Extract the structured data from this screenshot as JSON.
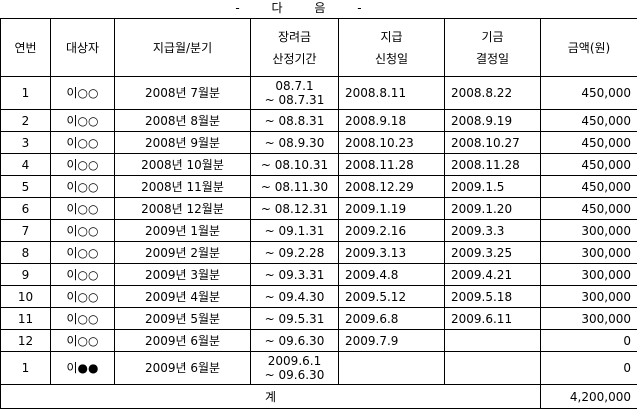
{
  "caption": "- 다 음 -",
  "table": {
    "header": [
      "연번",
      "대상자",
      "지급월/분기",
      "장려금\n산정기간",
      "지급\n신청일",
      "기금\n결정일",
      "금액(원)"
    ],
    "rows": [
      [
        "1",
        "이○○",
        "2008년 7월분",
        "08.7.1\n~ 08.7.31",
        "2008.8.11",
        "2008.8.22",
        "450,000"
      ],
      [
        "2",
        "이○○",
        "2008년 8월분",
        "~ 08.8.31",
        "2008.9.18",
        "2008.9.19",
        "450,000"
      ],
      [
        "3",
        "이○○",
        "2008년 9월분",
        "~ 08.9.30",
        "2008.10.23",
        "2008.10.27",
        "450,000"
      ],
      [
        "4",
        "이○○",
        "2008년 10월분",
        "~ 08.10.31",
        "2008.11.28",
        "2008.11.28",
        "450,000"
      ],
      [
        "5",
        "이○○",
        "2008년 11월분",
        "~ 08.11.30",
        "2008.12.29",
        "2009.1.5",
        "450,000"
      ],
      [
        "6",
        "이○○",
        "2008년 12월분",
        "~ 08.12.31",
        "2009.1.19",
        "2009.1.20",
        "450,000"
      ],
      [
        "7",
        "이○○",
        "2009년 1월분",
        "~ 09.1.31",
        "2009.2.16",
        "2009.3.3",
        "300,000"
      ],
      [
        "8",
        "이○○",
        "2009년 2월분",
        "~ 09.2.28",
        "2009.3.13",
        "2009.3.25",
        "300,000"
      ],
      [
        "9",
        "이○○",
        "2009년 3월분",
        "~ 09.3.31",
        "2009.4.8",
        "2009.4.21",
        "300,000"
      ],
      [
        "10",
        "이○○",
        "2009년 4월분",
        "~ 09.4.30",
        "2009.5.12",
        "2009.5.18",
        "300,000"
      ],
      [
        "11",
        "이○○",
        "2009년 5월분",
        "~ 09.5.31",
        "2009.6.8",
        "2009.6.11",
        "300,000"
      ],
      [
        "12",
        "이○○",
        "2009년 6월분",
        "~ 09.6.30",
        "2009.7.9",
        null,
        "0"
      ],
      [
        "1",
        "이●●",
        "2009년 6월분",
        "2009.6.1\n~ 09.6.30",
        null,
        null,
        "0"
      ]
    ],
    "total": {
      "label": "계",
      "amount": "4,200,000"
    }
  }
}
